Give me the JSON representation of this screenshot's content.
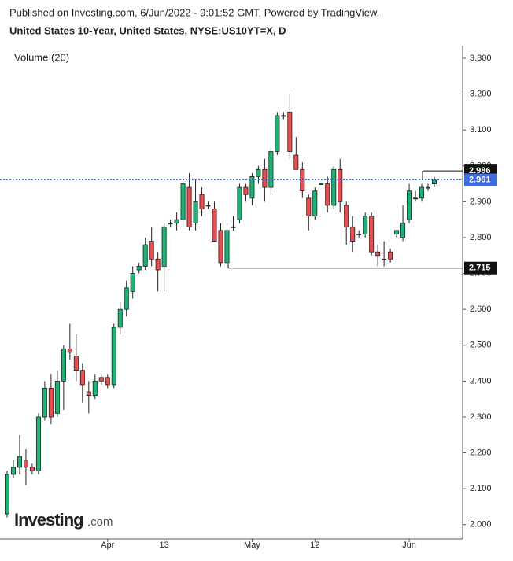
{
  "header": {
    "published": "Published on Investing.com, 6/Jun/2022 - 9:01:52 GMT, Powered by TradingView.",
    "symbol": "United States 10-Year, United States, NYSE:US10YT=X, D"
  },
  "logo": {
    "brand": "Investing",
    "suffix": ".com"
  },
  "chart_data": {
    "type": "candlestick",
    "indicator": "Volume (20)",
    "up_color": "#1db374",
    "down_color": "#e8504f",
    "categories": [
      null,
      null,
      null,
      null,
      null,
      null,
      null,
      null,
      null,
      null,
      null,
      null,
      null,
      null,
      null,
      null,
      "Apr",
      null,
      null,
      null,
      null,
      null,
      null,
      null,
      null,
      "13",
      null,
      null,
      null,
      null,
      null,
      null,
      null,
      null,
      null,
      null,
      null,
      null,
      null,
      "May",
      null,
      null,
      null,
      null,
      null,
      null,
      null,
      null,
      null,
      "12",
      null,
      null,
      null,
      null,
      null,
      null,
      null,
      null,
      null,
      null,
      null,
      null,
      null,
      null,
      "Jun",
      null,
      null,
      null,
      null
    ],
    "open": [
      2.03,
      2.14,
      2.16,
      2.18,
      2.16,
      2.15,
      2.3,
      2.38,
      2.31,
      2.4,
      2.49,
      2.47,
      2.43,
      2.37,
      2.36,
      2.41,
      2.41,
      2.39,
      2.55,
      2.6,
      2.65,
      2.71,
      2.72,
      2.79,
      2.74,
      2.72,
      2.84,
      2.84,
      2.85,
      2.94,
      2.84,
      2.92,
      2.89,
      2.88,
      2.82,
      2.73,
      2.83,
      2.85,
      2.94,
      2.91,
      2.97,
      2.99,
      2.94,
      3.04,
      3.14,
      3.15,
      3.03,
      2.99,
      2.91,
      2.86,
      2.95,
      2.95,
      2.89,
      2.99,
      2.89,
      2.83,
      2.81,
      2.81,
      2.86,
      2.76,
      2.74,
      2.76,
      2.81,
      2.8,
      2.85,
      2.91,
      2.91,
      2.94,
      2.95
    ],
    "high": [
      2.15,
      2.18,
      2.25,
      2.21,
      2.17,
      2.31,
      2.4,
      2.42,
      2.43,
      2.5,
      2.56,
      2.53,
      2.45,
      2.4,
      2.42,
      2.42,
      2.42,
      2.56,
      2.62,
      2.68,
      2.72,
      2.73,
      2.8,
      2.83,
      2.76,
      2.84,
      2.85,
      2.87,
      2.97,
      2.98,
      2.96,
      2.94,
      2.9,
      2.9,
      2.84,
      2.84,
      2.86,
      2.95,
      2.95,
      2.98,
      3.0,
      3.02,
      3.05,
      3.15,
      3.15,
      3.2,
      3.08,
      3.01,
      2.92,
      2.94,
      2.95,
      2.97,
      3.0,
      3.02,
      2.9,
      2.86,
      2.82,
      2.87,
      2.87,
      2.78,
      2.79,
      2.77,
      2.82,
      2.89,
      2.95,
      2.93,
      2.95,
      2.95,
      2.97
    ],
    "low": [
      2.02,
      2.13,
      2.14,
      2.11,
      2.14,
      2.14,
      2.29,
      2.28,
      2.3,
      2.32,
      2.46,
      2.4,
      2.34,
      2.31,
      2.35,
      2.39,
      2.38,
      2.38,
      2.53,
      2.58,
      2.63,
      2.7,
      2.71,
      2.72,
      2.65,
      2.65,
      2.83,
      2.82,
      2.83,
      2.82,
      2.82,
      2.86,
      2.88,
      2.8,
      2.72,
      2.72,
      2.82,
      2.84,
      2.9,
      2.89,
      2.95,
      2.9,
      2.92,
      3.03,
      3.13,
      3.02,
      2.99,
      2.91,
      2.82,
      2.85,
      2.95,
      2.87,
      2.88,
      2.87,
      2.78,
      2.76,
      2.8,
      2.8,
      2.75,
      2.72,
      2.72,
      2.73,
      2.8,
      2.79,
      2.84,
      2.9,
      2.9,
      2.93,
      2.94
    ],
    "close": [
      2.14,
      2.16,
      2.19,
      2.16,
      2.15,
      2.3,
      2.38,
      2.3,
      2.4,
      2.49,
      2.48,
      2.43,
      2.39,
      2.36,
      2.4,
      2.4,
      2.39,
      2.55,
      2.6,
      2.66,
      2.7,
      2.72,
      2.78,
      2.74,
      2.71,
      2.83,
      2.84,
      2.85,
      2.95,
      2.83,
      2.9,
      2.88,
      2.89,
      2.79,
      2.73,
      2.82,
      2.83,
      2.94,
      2.92,
      2.97,
      2.99,
      2.94,
      3.04,
      3.14,
      3.14,
      3.04,
      2.99,
      2.93,
      2.86,
      2.93,
      2.95,
      2.89,
      2.99,
      2.9,
      2.83,
      2.79,
      2.81,
      2.86,
      2.76,
      2.75,
      2.74,
      2.74,
      2.82,
      2.84,
      2.93,
      2.91,
      2.94,
      2.94,
      2.96
    ],
    "ylim": [
      1.96,
      3.335
    ],
    "yticks": [
      {
        "value": 2.0,
        "label": "2.000"
      },
      {
        "value": 2.1,
        "label": "2.100"
      },
      {
        "value": 2.2,
        "label": "2.200"
      },
      {
        "value": 2.3,
        "label": "2.300"
      },
      {
        "value": 2.4,
        "label": "2.400"
      },
      {
        "value": 2.5,
        "label": "2.500"
      },
      {
        "value": 2.6,
        "label": "2.600"
      },
      {
        "value": 2.7,
        "label": "2.700"
      },
      {
        "value": 2.8,
        "label": "2.800"
      },
      {
        "value": 2.9,
        "label": "2.900"
      },
      {
        "value": 3.0,
        "label": "3.000"
      },
      {
        "value": 3.1,
        "label": "3.100"
      },
      {
        "value": 3.2,
        "label": "3.200"
      },
      {
        "value": 3.3,
        "label": "3.300"
      }
    ],
    "last_price": {
      "value": 2.961,
      "color": "#3d6be0"
    },
    "levels": [
      2.986,
      2.715
    ]
  }
}
